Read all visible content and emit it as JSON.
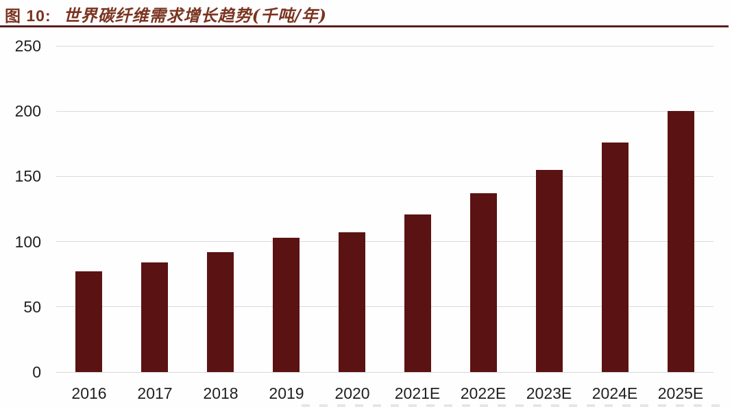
{
  "header": {
    "figure_label": "图 10:",
    "title": "世界碳纤维需求增长趋势(千吨/年)"
  },
  "colors": {
    "title_text": "#7a3420",
    "title_underline": "#5a1d1e",
    "bar": "#5b1212",
    "gridline": "#d9d9d9",
    "axis_text": "#1f1f1f",
    "background": "#ffffff"
  },
  "chart_data": {
    "type": "bar",
    "title": "世界碳纤维需求增长趋势(千吨/年)",
    "unit": "千吨/年",
    "categories": [
      "2016",
      "2017",
      "2018",
      "2019",
      "2020",
      "2021E",
      "2022E",
      "2023E",
      "2024E",
      "2025E"
    ],
    "values": [
      77,
      84,
      92,
      103,
      107,
      121,
      137,
      155,
      176,
      200
    ],
    "xlabel": "",
    "ylabel": "",
    "ylim": [
      0,
      250
    ],
    "yticks": [
      0,
      50,
      100,
      150,
      200,
      250
    ],
    "grid": true,
    "legend": "none",
    "bar_color": "#5b1212"
  }
}
